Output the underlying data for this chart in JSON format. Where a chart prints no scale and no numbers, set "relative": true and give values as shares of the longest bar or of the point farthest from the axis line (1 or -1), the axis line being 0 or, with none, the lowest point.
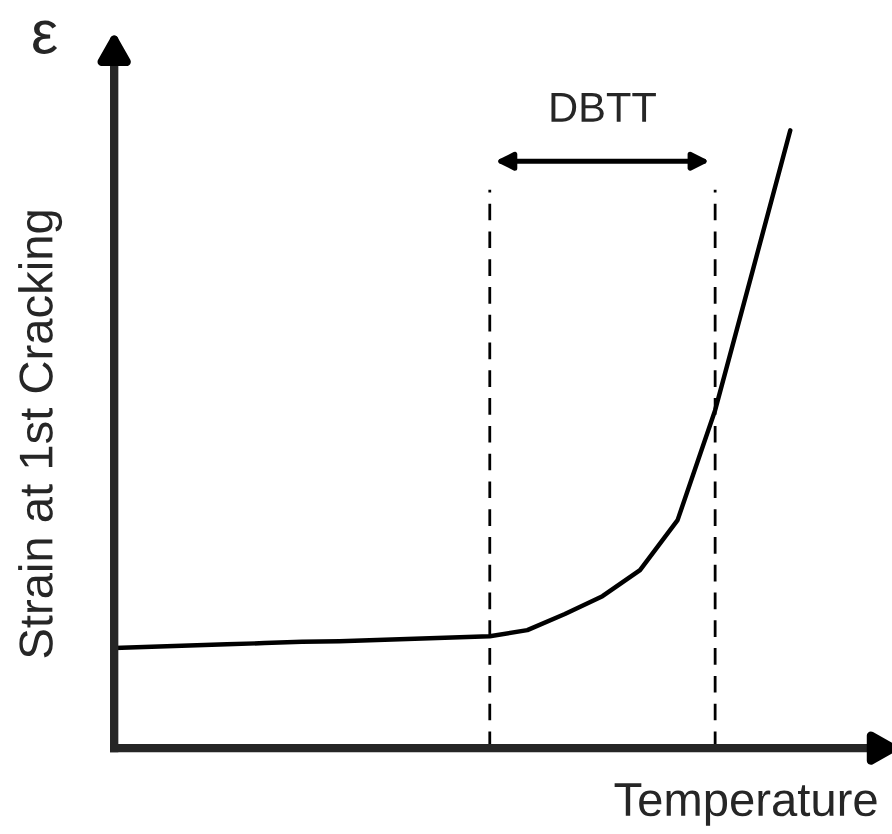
{
  "chart_data": {
    "type": "line",
    "relative": true,
    "xlabel": "Temperature",
    "ylabel": "Strain at 1st Cracking",
    "annotations": [
      "ε",
      "DBTT"
    ],
    "categories": [
      null,
      null,
      null,
      null,
      null,
      null,
      null,
      null,
      null,
      null,
      null,
      null,
      null,
      null,
      null,
      null,
      null,
      null,
      null
    ],
    "series": [
      {
        "color": "#000000",
        "values": [
          0.162,
          0.164,
          0.166,
          0.168,
          0.17,
          0.172,
          0.173,
          0.175,
          0.177,
          0.179,
          0.181,
          0.191,
          0.217,
          0.246,
          0.288,
          0.369,
          0.547,
          0.773,
          1
        ]
      }
    ],
    "marker": "none",
    "line_style": "solid"
  }
}
